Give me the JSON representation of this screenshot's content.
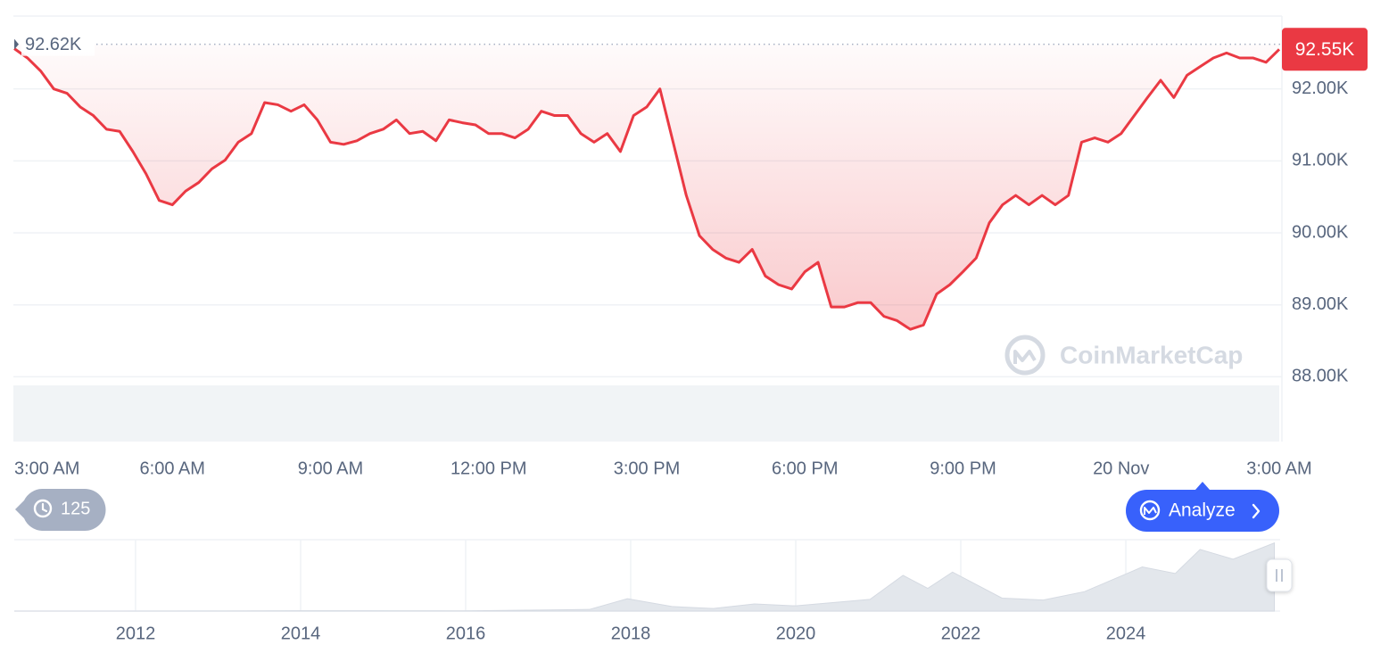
{
  "chart_data": [
    {
      "type": "line",
      "x": [
        0,
        0.25,
        0.5,
        0.75,
        1,
        1.25,
        1.5,
        1.75,
        2,
        2.25,
        2.5,
        2.75,
        3,
        3.25,
        3.5,
        3.75,
        4,
        4.25,
        4.5,
        4.75,
        5,
        5.25,
        5.5,
        5.75,
        6,
        6.25,
        6.5,
        6.75,
        7,
        7.25,
        7.5,
        7.75,
        8,
        8.25,
        8.5,
        8.75,
        9,
        9.25,
        9.5,
        9.75,
        10,
        10.25,
        10.5,
        10.75,
        11,
        11.25,
        11.5,
        11.75,
        12,
        12.25,
        12.5,
        12.75,
        13,
        13.25,
        13.5,
        13.75,
        14,
        14.25,
        14.5,
        14.75,
        15,
        15.25,
        15.5,
        15.75,
        16,
        16.25,
        16.5,
        16.75,
        17,
        17.25,
        17.5,
        17.75,
        18,
        18.25,
        18.5,
        18.75,
        19,
        19.25,
        19.5,
        19.75,
        20,
        20.25,
        20.5,
        20.75,
        21,
        21.25,
        21.5,
        21.75,
        22,
        22.25,
        22.5,
        22.75,
        23,
        23.25,
        23.5,
        23.75,
        24
      ],
      "series": [
        {
          "color": "#ea3943",
          "values": [
            92560,
            92430,
            92250,
            92000,
            91940,
            91750,
            91630,
            91440,
            91410,
            91130,
            90820,
            90450,
            90390,
            90580,
            90700,
            90890,
            91010,
            91260,
            91380,
            91810,
            91780,
            91690,
            91780,
            91570,
            91260,
            91230,
            91280,
            91380,
            91440,
            91570,
            91380,
            91410,
            91280,
            91570,
            91530,
            91500,
            91380,
            91380,
            91320,
            91440,
            91690,
            91630,
            91630,
            91380,
            91260,
            91380,
            91130,
            91630,
            91750,
            92000,
            91260,
            90520,
            89960,
            89770,
            89650,
            89590,
            89770,
            89400,
            89280,
            89220,
            89460,
            89590,
            88970,
            88970,
            89030,
            89030,
            88840,
            88780,
            88660,
            88720,
            89150,
            89280,
            89460,
            89650,
            90140,
            90390,
            90520,
            90390,
            90520,
            90390,
            90520,
            91260,
            91320,
            91260,
            91380,
            91630,
            91880,
            92120,
            91880,
            92190,
            92310,
            92430,
            92500,
            92430,
            92430,
            92370,
            92550
          ]
        }
      ],
      "xlim": [
        0,
        24
      ],
      "xticks": [
        {
          "value": 0,
          "label": "3:00 AM"
        },
        {
          "value": 3,
          "label": "6:00 AM"
        },
        {
          "value": 6,
          "label": "9:00 AM"
        },
        {
          "value": 9,
          "label": "12:00 PM"
        },
        {
          "value": 12,
          "label": "3:00 PM"
        },
        {
          "value": 15,
          "label": "6:00 PM"
        },
        {
          "value": 18,
          "label": "9:00 PM"
        },
        {
          "value": 21,
          "label": "20 Nov"
        },
        {
          "value": 24,
          "label": "3:00 AM"
        }
      ],
      "ylim": [
        87100,
        93000
      ],
      "yticks": [
        {
          "value": 88000,
          "label": "88.00K"
        },
        {
          "value": 89000,
          "label": "89.00K"
        },
        {
          "value": 90000,
          "label": "90.00K"
        },
        {
          "value": 91000,
          "label": "91.00K"
        },
        {
          "value": 92000,
          "label": "92.00K"
        }
      ],
      "grid": true,
      "reference_line": {
        "value": 92620,
        "label": "92.62K"
      },
      "last_price": {
        "value": 92550,
        "label": "92.55K"
      },
      "watermark": "CoinMarketCap"
    },
    {
      "type": "area",
      "x": [
        2010.53,
        2013,
        2014,
        2016,
        2017.5,
        2017.96,
        2018.5,
        2019,
        2019.5,
        2020,
        2020.9,
        2021.3,
        2021.6,
        2021.9,
        2022.5,
        2023,
        2023.5,
        2024.2,
        2024.6,
        2024.9,
        2025.3,
        2025.8
      ],
      "values": [
        0,
        100,
        600,
        400,
        2500,
        19000,
        7000,
        4000,
        11000,
        8000,
        18000,
        55000,
        35000,
        60000,
        20000,
        17000,
        30000,
        68000,
        58000,
        95000,
        80000,
        105000
      ],
      "color": "#e3e7ec",
      "xlim": [
        2010.53,
        2025.87
      ],
      "ylim": [
        0,
        110000
      ],
      "xticks": [
        2012,
        2014,
        2016,
        2018,
        2020,
        2022,
        2024
      ]
    }
  ],
  "ui": {
    "history_count": 125,
    "analyze_button": "Analyze"
  }
}
